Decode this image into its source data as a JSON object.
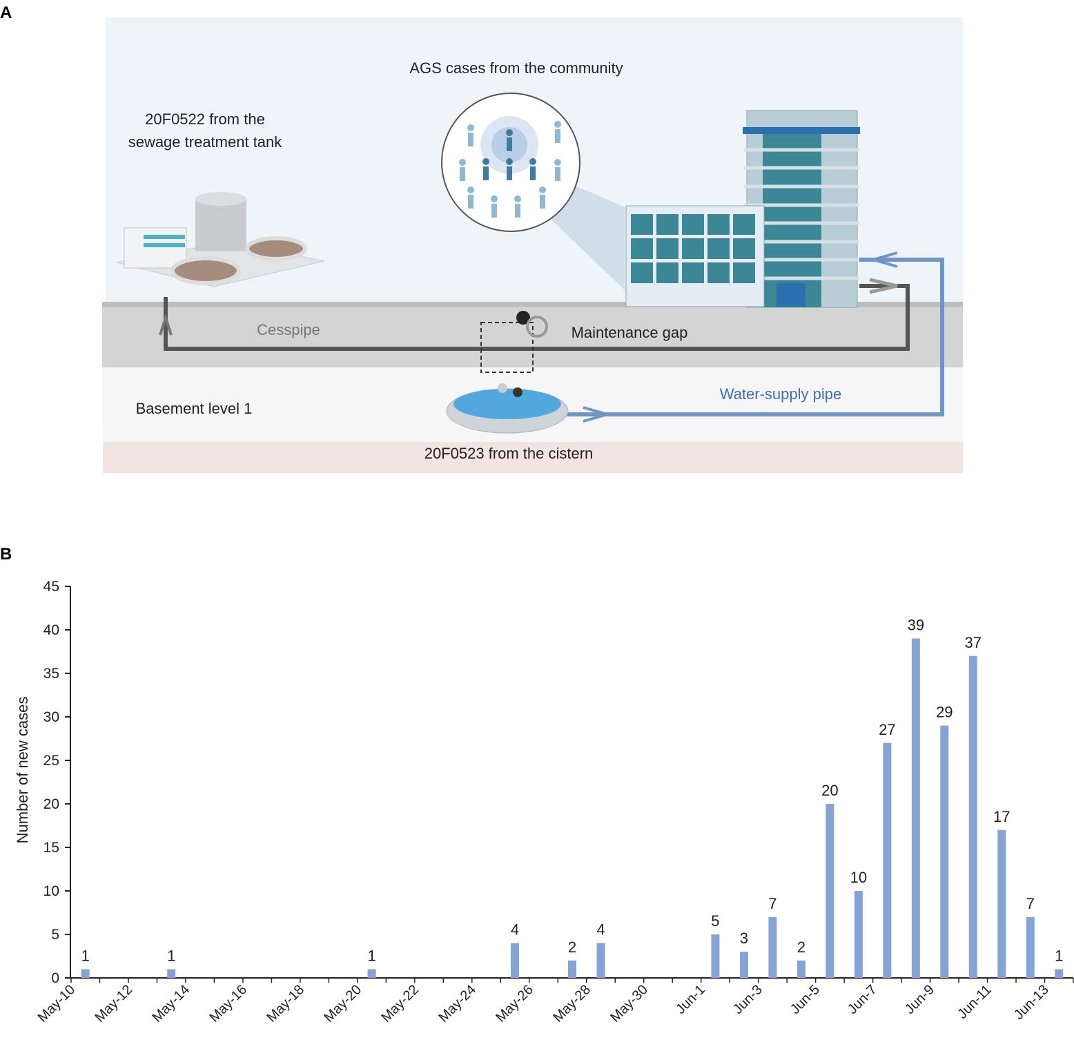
{
  "panel_a": {
    "label": "A",
    "community": "AGS cases from the community",
    "tank": [
      "20F0522 from the",
      "sewage treatment tank"
    ],
    "cesspipe": "Cesspipe",
    "maintenance_gap": "Maintenance gap",
    "basement": "Basement level 1",
    "water_pipe": "Water-supply pipe",
    "cistern": "20F0523 from the cistern"
  },
  "panel_b": {
    "label": "B"
  },
  "chart_data": {
    "type": "bar",
    "y_label": "Number of new cases",
    "categories": [
      "May-10",
      null,
      "May-12",
      null,
      "May-14",
      null,
      "May-16",
      null,
      "May-18",
      null,
      "May-20",
      null,
      "May-22",
      null,
      "May-24",
      null,
      "May-26",
      null,
      "May-28",
      null,
      "May-30",
      null,
      "Jun-1",
      null,
      "Jun-3",
      null,
      "Jun-5",
      null,
      "Jun-7",
      null,
      "Jun-9",
      null,
      "Jun-11",
      null,
      "Jun-13"
    ],
    "values": [
      1,
      null,
      null,
      1,
      null,
      null,
      null,
      null,
      null,
      null,
      1,
      null,
      null,
      null,
      null,
      4,
      null,
      2,
      4,
      null,
      null,
      null,
      5,
      3,
      7,
      2,
      20,
      10,
      27,
      39,
      29,
      37,
      17,
      7,
      1
    ],
    "color": "#86a3d6",
    "ylim": [
      0,
      45
    ],
    "yticks": [
      0,
      5,
      10,
      15,
      20,
      25,
      30,
      35,
      40,
      45
    ]
  }
}
